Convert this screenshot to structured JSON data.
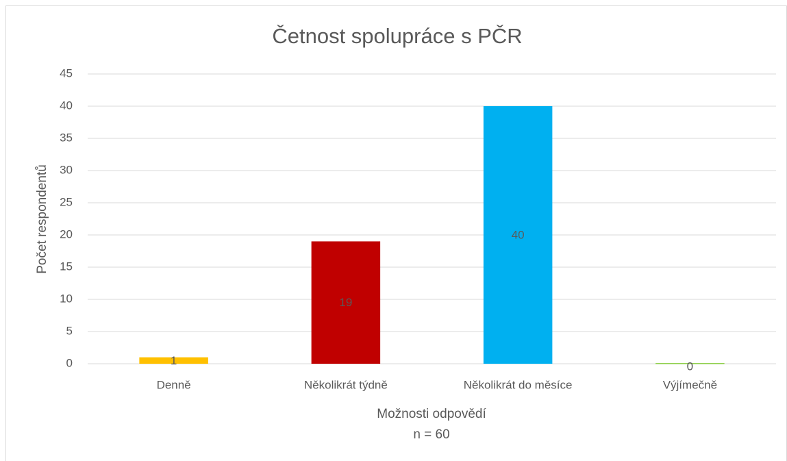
{
  "chart_data": {
    "type": "bar",
    "title": "Četnost spolupráce s PČR",
    "ylabel": "Počet respondentů",
    "xlabel": "Možnosti odpovědí",
    "note": "n = 60",
    "categories": [
      "Denně",
      "Několikrát týdně",
      "Několikrát do měsíce",
      "Výjímečně"
    ],
    "values": [
      1,
      19,
      40,
      0
    ],
    "colors": [
      "#ffc000",
      "#c00000",
      "#00b0f0",
      "#92d050"
    ],
    "ylim": [
      0,
      45
    ],
    "yticks": [
      0,
      5,
      10,
      15,
      20,
      25,
      30,
      35,
      40,
      45
    ],
    "grid": true
  }
}
